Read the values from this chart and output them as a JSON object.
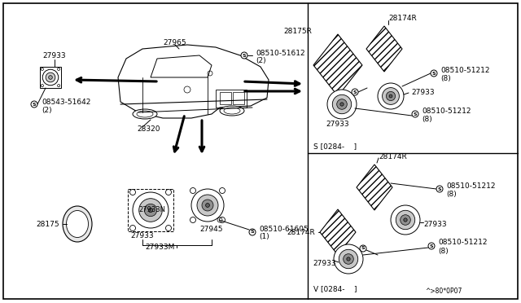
{
  "bg_color": "#ffffff",
  "line_color": "#000000",
  "text_color": "#000000",
  "footer_code": "^>80*0P07",
  "s_label": "S [0284-    ]",
  "v_label": "V [0284-    ]"
}
